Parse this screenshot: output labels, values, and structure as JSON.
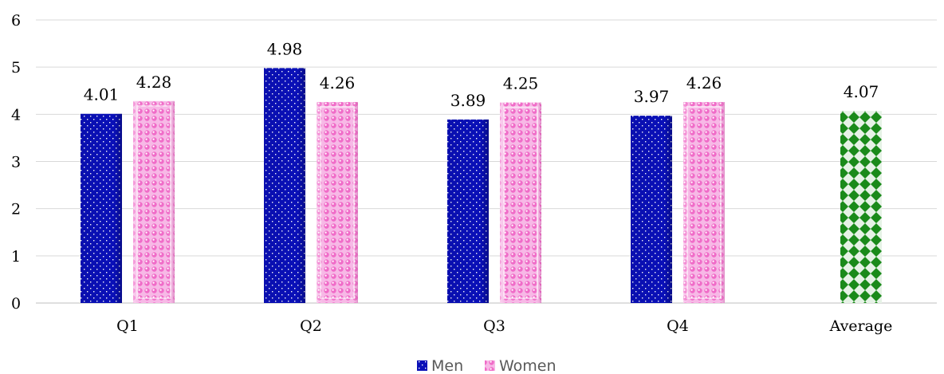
{
  "chart_data": {
    "type": "bar",
    "categories": [
      "Q1",
      "Q2",
      "Q3",
      "Q4",
      "Average"
    ],
    "series": [
      {
        "name": "Men",
        "color": "#0a10b8",
        "values": [
          4.01,
          4.98,
          3.89,
          3.97,
          null
        ]
      },
      {
        "name": "Women",
        "color": "#f06cc8",
        "values": [
          4.28,
          4.26,
          4.25,
          4.26,
          null
        ]
      },
      {
        "name": "",
        "color": "#1a8a1a",
        "values": [
          null,
          null,
          null,
          null,
          4.07
        ]
      }
    ],
    "data_labels": true,
    "ylim": [
      0,
      6
    ],
    "yticks": [
      0,
      1,
      2,
      3,
      4,
      5,
      6
    ],
    "grid": true,
    "legend": {
      "entries": [
        "Men",
        "Women"
      ],
      "placement": "bottom-center"
    },
    "title": "",
    "xlabel": "",
    "ylabel": ""
  }
}
